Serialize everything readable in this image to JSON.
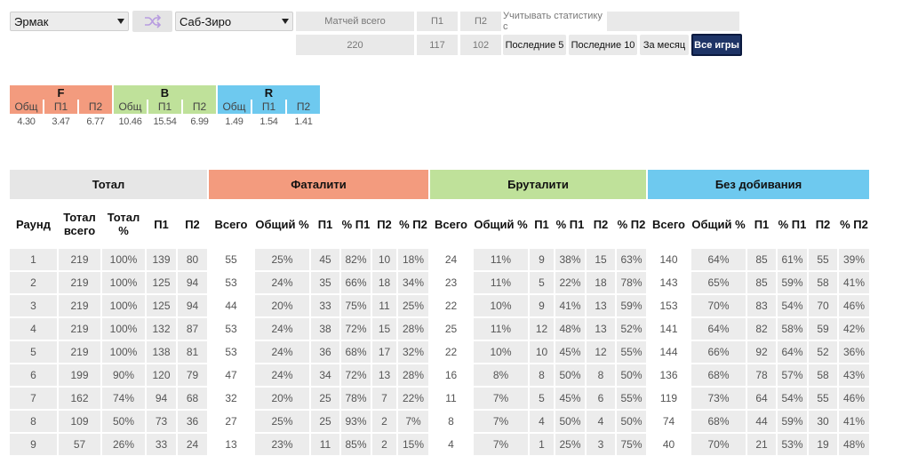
{
  "controls": {
    "player1": "Эрмак",
    "player2": "Саб-Зиро",
    "shuffle_icon": "shuffle-icon",
    "matches_label": "Матчей всего",
    "p1_label": "П1",
    "p2_label": "П2",
    "stats_from_label": "Учитывать статистику с",
    "stats_from_value": "",
    "matches_total": "220",
    "p1_total": "117",
    "p2_total": "102",
    "filters": [
      "Последние 5",
      "Последние 10",
      "За месяц",
      "Все игры"
    ],
    "active_filter": 3
  },
  "fbr": {
    "groups": [
      "F",
      "B",
      "R"
    ],
    "sub": [
      "Общ",
      "П1",
      "П2"
    ],
    "values": [
      [
        "4.30",
        "3.47",
        "6.77"
      ],
      [
        "10.46",
        "15.54",
        "6.99"
      ],
      [
        "1.49",
        "1.54",
        "1.41"
      ]
    ]
  },
  "table": {
    "groups": [
      "Тотал",
      "Фаталити",
      "Бруталити",
      "Без добивания"
    ],
    "columns": {
      "total": [
        "Раунд",
        "Тотал всего",
        "Тотал %",
        "П1",
        "П2"
      ],
      "fatality": [
        "Всего",
        "Общий %",
        "П1",
        "% П1",
        "П2",
        "% П2"
      ],
      "brutality": [
        "Всего",
        "Общий %",
        "П1",
        "% П1",
        "П2",
        "% П2"
      ],
      "none": [
        "Всего",
        "Общий %",
        "П1",
        "% П1",
        "П2",
        "% П2"
      ]
    },
    "rows": [
      [
        "1",
        "219",
        "100%",
        "139",
        "80",
        "55",
        "25%",
        "45",
        "82%",
        "10",
        "18%",
        "24",
        "11%",
        "9",
        "38%",
        "15",
        "63%",
        "140",
        "64%",
        "85",
        "61%",
        "55",
        "39%"
      ],
      [
        "2",
        "219",
        "100%",
        "125",
        "94",
        "53",
        "24%",
        "35",
        "66%",
        "18",
        "34%",
        "23",
        "11%",
        "5",
        "22%",
        "18",
        "78%",
        "143",
        "65%",
        "85",
        "59%",
        "58",
        "41%"
      ],
      [
        "3",
        "219",
        "100%",
        "125",
        "94",
        "44",
        "20%",
        "33",
        "75%",
        "11",
        "25%",
        "22",
        "10%",
        "9",
        "41%",
        "13",
        "59%",
        "153",
        "70%",
        "83",
        "54%",
        "70",
        "46%"
      ],
      [
        "4",
        "219",
        "100%",
        "132",
        "87",
        "53",
        "24%",
        "38",
        "72%",
        "15",
        "28%",
        "25",
        "11%",
        "12",
        "48%",
        "13",
        "52%",
        "141",
        "64%",
        "82",
        "58%",
        "59",
        "42%"
      ],
      [
        "5",
        "219",
        "100%",
        "138",
        "81",
        "53",
        "24%",
        "36",
        "68%",
        "17",
        "32%",
        "22",
        "10%",
        "10",
        "45%",
        "12",
        "55%",
        "144",
        "66%",
        "92",
        "64%",
        "52",
        "36%"
      ],
      [
        "6",
        "199",
        "90%",
        "120",
        "79",
        "47",
        "24%",
        "34",
        "72%",
        "13",
        "28%",
        "16",
        "8%",
        "8",
        "50%",
        "8",
        "50%",
        "136",
        "68%",
        "78",
        "57%",
        "58",
        "43%"
      ],
      [
        "7",
        "162",
        "74%",
        "94",
        "68",
        "32",
        "20%",
        "25",
        "78%",
        "7",
        "22%",
        "11",
        "7%",
        "5",
        "45%",
        "6",
        "55%",
        "119",
        "73%",
        "64",
        "54%",
        "55",
        "46%"
      ],
      [
        "8",
        "109",
        "50%",
        "73",
        "36",
        "27",
        "25%",
        "25",
        "93%",
        "2",
        "7%",
        "8",
        "7%",
        "4",
        "50%",
        "4",
        "50%",
        "74",
        "68%",
        "44",
        "59%",
        "30",
        "41%"
      ],
      [
        "9",
        "57",
        "26%",
        "33",
        "24",
        "13",
        "23%",
        "11",
        "85%",
        "2",
        "15%",
        "4",
        "7%",
        "1",
        "25%",
        "3",
        "75%",
        "40",
        "70%",
        "21",
        "53%",
        "19",
        "48%"
      ]
    ]
  }
}
